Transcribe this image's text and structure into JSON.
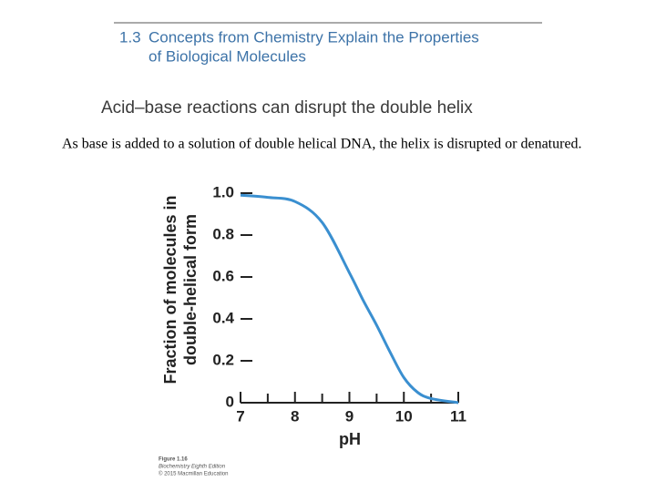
{
  "header": {
    "number": "1.3",
    "title_lines": [
      "Concepts from Chemistry Explain the Properties",
      "of Biological Molecules"
    ]
  },
  "subtitle": "Acid–base reactions can disrupt the double helix",
  "caption": "As base is added to a solution of double helical DNA, the helix is disrupted or denatured.",
  "credit": [
    "Figure 1.16",
    "Biochemistry Eighth Edition",
    "© 2015 Macmillan Education"
  ],
  "chart_data": {
    "type": "line",
    "xlabel": "pH",
    "ylabel": [
      "Fraction of molecules in",
      "double-helical form"
    ],
    "x": [
      7,
      7.5,
      8,
      8.5,
      9,
      9.25,
      9.5,
      9.75,
      10,
      10.25,
      10.5,
      11
    ],
    "values": [
      0.99,
      0.98,
      0.96,
      0.86,
      0.62,
      0.49,
      0.37,
      0.24,
      0.12,
      0.05,
      0.02,
      0
    ],
    "color": "#3a8fd0",
    "xlim": [
      7,
      11
    ],
    "xticks": [
      7,
      8,
      9,
      10,
      11
    ],
    "xminorticks": [
      7.5,
      8.5,
      9.5,
      10.5
    ],
    "ylim": [
      0,
      1
    ],
    "yticks": [
      0,
      0.2,
      0.4,
      0.6,
      0.8,
      {
        "value": 1,
        "label": "1.0"
      }
    ]
  }
}
